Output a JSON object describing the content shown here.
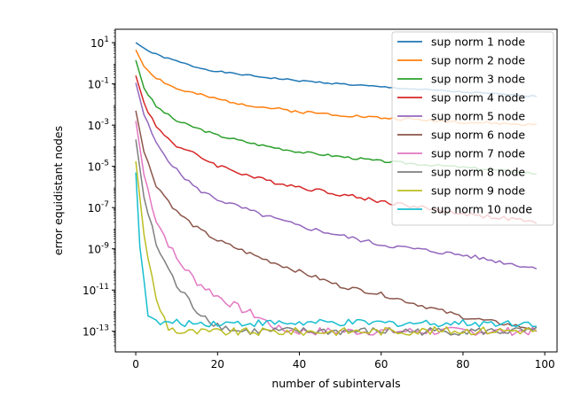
{
  "chart_data": {
    "type": "line",
    "xlabel": "number of subintervals",
    "ylabel": "error equidistant nodes",
    "x_ticks": [
      0,
      20,
      40,
      60,
      80,
      100
    ],
    "y_ticks": [
      {
        "exp": 1,
        "base": "10",
        "sup": "1"
      },
      {
        "exp": -1,
        "base": "10",
        "sup": "-1"
      },
      {
        "exp": -3,
        "base": "10",
        "sup": "-3"
      },
      {
        "exp": -5,
        "base": "10",
        "sup": "-5"
      },
      {
        "exp": -7,
        "base": "10",
        "sup": "-7"
      },
      {
        "exp": -9,
        "base": "10",
        "sup": "-9"
      },
      {
        "exp": -11,
        "base": "10",
        "sup": "-11"
      },
      {
        "exp": -13,
        "base": "10",
        "sup": "-13"
      }
    ],
    "xlim": [
      -5,
      103
    ],
    "ylog_lim": [
      -14.0,
      1.65
    ],
    "y_scale": "log",
    "legend_position": "top-right",
    "x_start": 0,
    "x_end": 98,
    "series": [
      {
        "name": "sup norm 1 node",
        "color": "#1f77b4",
        "keypoints": [
          [
            0,
            1.0
          ],
          [
            3,
            0.6
          ],
          [
            6,
            0.35
          ],
          [
            10,
            0.1
          ],
          [
            15,
            -0.2
          ],
          [
            20,
            -0.4
          ],
          [
            30,
            -0.65
          ],
          [
            40,
            -0.85
          ],
          [
            60,
            -1.15
          ],
          [
            80,
            -1.4
          ],
          [
            98,
            -1.6
          ]
        ],
        "noise": 0.04,
        "seed": 1
      },
      {
        "name": "sup norm 2 node",
        "color": "#ff7f0e",
        "keypoints": [
          [
            0,
            0.65
          ],
          [
            2,
            -0.15
          ],
          [
            5,
            -0.7
          ],
          [
            10,
            -1.25
          ],
          [
            20,
            -1.75
          ],
          [
            30,
            -2.1
          ],
          [
            40,
            -2.35
          ],
          [
            60,
            -2.65
          ],
          [
            80,
            -2.85
          ],
          [
            98,
            -3.0
          ]
        ],
        "noise": 0.07,
        "seed": 2
      },
      {
        "name": "sup norm 3 node",
        "color": "#2ca02c",
        "keypoints": [
          [
            0,
            0.15
          ],
          [
            2,
            -1.2
          ],
          [
            5,
            -2.1
          ],
          [
            10,
            -2.8
          ],
          [
            20,
            -3.5
          ],
          [
            30,
            -3.95
          ],
          [
            40,
            -4.3
          ],
          [
            60,
            -4.75
          ],
          [
            80,
            -5.05
          ],
          [
            98,
            -5.35
          ]
        ],
        "noise": 0.06,
        "seed": 3
      },
      {
        "name": "sup norm 4 node",
        "color": "#d62728",
        "keypoints": [
          [
            0,
            -0.6
          ],
          [
            2,
            -1.9
          ],
          [
            5,
            -3.1
          ],
          [
            10,
            -4.0
          ],
          [
            20,
            -4.95
          ],
          [
            30,
            -5.6
          ],
          [
            40,
            -6.0
          ],
          [
            60,
            -6.7
          ],
          [
            80,
            -7.3
          ],
          [
            96,
            -7.65
          ],
          [
            98,
            -7.85
          ]
        ],
        "noise": 0.1,
        "seed": 4
      },
      {
        "name": "sup norm 5 node",
        "color": "#9467bd",
        "keypoints": [
          [
            0,
            -0.95
          ],
          [
            2,
            -2.5
          ],
          [
            5,
            -3.9
          ],
          [
            10,
            -5.2
          ],
          [
            15,
            -6.1
          ],
          [
            20,
            -6.6
          ],
          [
            30,
            -7.3
          ],
          [
            40,
            -7.9
          ],
          [
            60,
            -8.8
          ],
          [
            80,
            -9.3
          ],
          [
            98,
            -9.95
          ]
        ],
        "noise": 0.1,
        "seed": 5
      },
      {
        "name": "sup norm 6 node",
        "color": "#8c564b",
        "keypoints": [
          [
            0,
            -2.3
          ],
          [
            2,
            -4.3
          ],
          [
            5,
            -5.9
          ],
          [
            10,
            -7.2
          ],
          [
            15,
            -8.0
          ],
          [
            20,
            -8.6
          ],
          [
            30,
            -9.4
          ],
          [
            40,
            -10.1
          ],
          [
            50,
            -10.8
          ],
          [
            60,
            -11.2
          ],
          [
            80,
            -12.3
          ],
          [
            98,
            -12.9
          ]
        ],
        "noise": 0.1,
        "seed": 6
      },
      {
        "name": "sup norm 7 node",
        "color": "#e377c2",
        "keypoints": [
          [
            0,
            -2.8
          ],
          [
            2,
            -5.4
          ],
          [
            5,
            -7.6
          ],
          [
            10,
            -9.5
          ],
          [
            15,
            -10.6
          ],
          [
            20,
            -11.3
          ],
          [
            25,
            -11.85
          ],
          [
            30,
            -12.3
          ],
          [
            35,
            -12.9
          ],
          [
            40,
            -13.0
          ],
          [
            98,
            -13.0
          ]
        ],
        "noise": 0.2,
        "seed": 7
      },
      {
        "name": "sup norm 8 node",
        "color": "#7f7f7f",
        "keypoints": [
          [
            0,
            -3.7
          ],
          [
            2,
            -6.5
          ],
          [
            5,
            -8.8
          ],
          [
            10,
            -10.8
          ],
          [
            15,
            -12.0
          ],
          [
            20,
            -12.7
          ],
          [
            25,
            -13.0
          ],
          [
            98,
            -13.0
          ]
        ],
        "noise": 0.2,
        "seed": 8
      },
      {
        "name": "sup norm 9 node",
        "color": "#bcbd22",
        "keypoints": [
          [
            0,
            -4.75
          ],
          [
            2,
            -8.3
          ],
          [
            5,
            -11.5
          ],
          [
            8,
            -12.8
          ],
          [
            11,
            -13.05
          ],
          [
            98,
            -12.95
          ]
        ],
        "noise": 0.2,
        "seed": 9
      },
      {
        "name": "sup norm 10 node",
        "color": "#17becf",
        "keypoints": [
          [
            0,
            -5.3
          ],
          [
            1,
            -8.9
          ],
          [
            3,
            -12.1
          ],
          [
            5,
            -12.6
          ],
          [
            98,
            -12.6
          ]
        ],
        "noise": 0.18,
        "seed": 10
      }
    ]
  }
}
